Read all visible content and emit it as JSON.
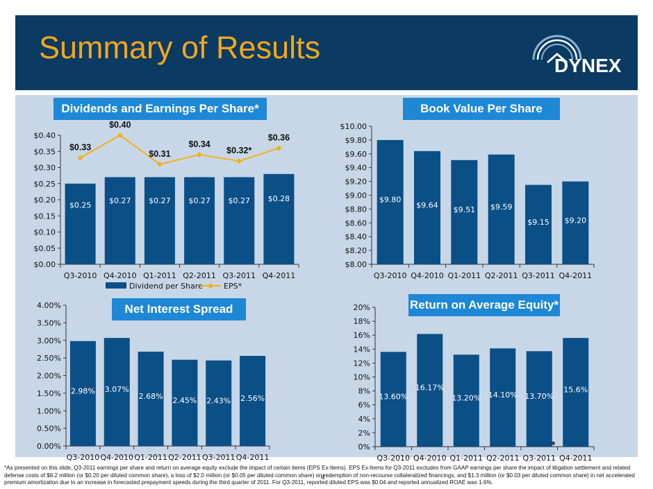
{
  "title": "Summary of Results",
  "logo": {
    "text": "DYNEX",
    "icon": "dynex-house-arc-icon"
  },
  "colors": {
    "header": "#0b3a63",
    "title": "#f2a71b",
    "panel": "#c7d7e7",
    "bar": "#0b4f87",
    "badge": "#1e88d6",
    "eps_line": "#f5b01b"
  },
  "charts": [
    {
      "id": "dividends-eps",
      "badge": "Dividends and Earnings Per Share*",
      "type": "bar+line",
      "categories": [
        "Q3-2010",
        "Q4-2010",
        "Q1-2011",
        "Q2-2011",
        "Q3-2011",
        "Q4-2011"
      ],
      "ylim": [
        0,
        0.4
      ],
      "ystep": 0.05,
      "yfmt": "dollar2",
      "yticks": [
        "$0.00",
        "$0.05",
        "$0.10",
        "$0.15",
        "$0.20",
        "$0.25",
        "$0.30",
        "$0.35",
        "$0.40"
      ],
      "series": [
        {
          "name": "Dividend per Share",
          "type": "bar",
          "values": [
            0.25,
            0.27,
            0.27,
            0.27,
            0.27,
            0.28
          ],
          "labels": [
            "$0.25",
            "$0.27",
            "$0.27",
            "$0.27",
            "$0.27",
            "$0.28"
          ]
        },
        {
          "name": "EPS*",
          "type": "line",
          "values": [
            0.33,
            0.4,
            0.31,
            0.34,
            0.32,
            0.36
          ],
          "labels": [
            "$0.33",
            "$0.40",
            "$0.31",
            "$0.34",
            "$0.32*",
            "$0.36"
          ]
        }
      ]
    },
    {
      "id": "book-value",
      "badge": "Book Value Per Share",
      "type": "bar",
      "categories": [
        "Q3-2010",
        "Q4-2010",
        "Q1-2011",
        "Q2-2011",
        "Q3-2011",
        "Q4-2011"
      ],
      "ylim": [
        8.0,
        10.0
      ],
      "ystep": 0.2,
      "yticks": [
        "$8.00",
        "$8.20",
        "$8.40",
        "$8.60",
        "$8.80",
        "$9.00",
        "$9.20",
        "$9.40",
        "$9.60",
        "$9.80",
        "$10.00"
      ],
      "series": [
        {
          "name": "Book Value Per Share",
          "type": "bar",
          "values": [
            9.8,
            9.64,
            9.51,
            9.59,
            9.15,
            9.2
          ],
          "labels": [
            "$9.80",
            "$9.64",
            "$9.51",
            "$9.59",
            "$9.15",
            "$9.20"
          ]
        }
      ]
    },
    {
      "id": "net-interest-spread",
      "badge": "Net Interest Spread",
      "type": "bar",
      "categories": [
        "Q3-2010",
        "Q4-2010",
        "Q1-2011",
        "Q2-2011",
        "Q3-2011",
        "Q4-2011"
      ],
      "ylim": [
        0,
        4.0
      ],
      "ystep": 0.5,
      "yticks": [
        "0.00%",
        "0.50%",
        "1.00%",
        "1.50%",
        "2.00%",
        "2.50%",
        "3.00%",
        "3.50%",
        "4.00%"
      ],
      "series": [
        {
          "name": "Net Interest Spread",
          "type": "bar",
          "values": [
            2.98,
            3.07,
            2.68,
            2.45,
            2.43,
            2.56
          ],
          "labels": [
            "2.98%",
            "3.07%",
            "2.68%",
            "2.45%",
            "2.43%",
            "2.56%"
          ]
        }
      ]
    },
    {
      "id": "roae",
      "badge": "Return on Average Equity*",
      "type": "bar",
      "categories": [
        "Q3-2010",
        "Q4-2010",
        "Q1-2011",
        "Q2-2011",
        "Q3-2011",
        "Q4-2011"
      ],
      "ylim": [
        0,
        20
      ],
      "ystep": 2,
      "yticks": [
        "0%",
        "2%",
        "4%",
        "6%",
        "8%",
        "10%",
        "12%",
        "14%",
        "16%",
        "18%",
        "20%"
      ],
      "series": [
        {
          "name": "Return on Average Equity*",
          "type": "bar",
          "values": [
            13.6,
            16.17,
            13.2,
            14.1,
            13.7,
            15.6
          ],
          "labels": [
            "13.60%",
            "16.17%",
            "13.20%",
            "14.10%",
            "13.70%",
            "15.6%"
          ]
        }
      ],
      "annotation": "*"
    }
  ],
  "footnote": "*As presented on this slide, Q3-2011 earnings per share and return on average equity exclude the impact of certain items (EPS Ex-Items). EPS Ex-Items for Q3-2011 excludes from GAAP earnings per share the impact of litigation settlement and related defense costs of $8.2 million (or $0.20 per diluted common share), a loss of $2.0 million (or $0.05 per diluted common share) on redemption of non-recourse collateralized financings, and $1.3 million (or $0.03 per diluted common share) in net accelerated premium amortization due to an increase in forecasted prepayment speeds during the third quarter of 2011. For Q3-2011, reported diluted EPS was $0.04 and reported annualized ROAE was 1.6%.",
  "page_number": "4"
}
